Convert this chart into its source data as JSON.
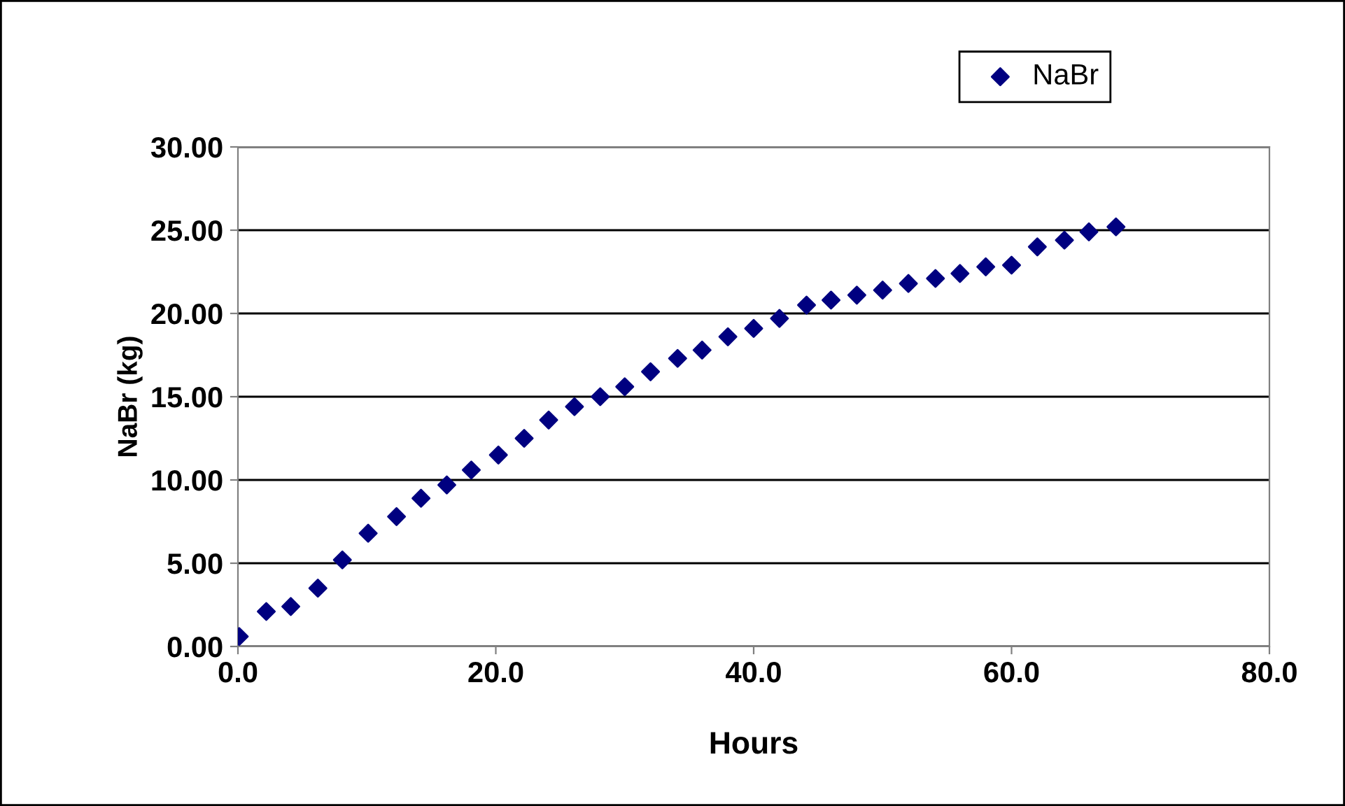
{
  "chart_data": {
    "type": "scatter",
    "xlabel": "Hours",
    "ylabel": "NaBr (kg)",
    "x": [
      0.1,
      2.2,
      4.1,
      6.2,
      8.1,
      10.1,
      12.3,
      14.2,
      16.2,
      18.1,
      20.2,
      22.2,
      24.1,
      26.1,
      28.1,
      30.0,
      32.0,
      34.1,
      36.0,
      38.0,
      40.0,
      42.0,
      44.1,
      46.0,
      48.0,
      50.0,
      52.0,
      54.1,
      56.0,
      58.0,
      60.0,
      62.0,
      64.1,
      66.0,
      68.1
    ],
    "series": [
      {
        "name": "NaBr",
        "color": "#000080",
        "values": [
          0.6,
          2.1,
          2.4,
          3.5,
          5.2,
          6.8,
          7.8,
          8.9,
          9.7,
          10.6,
          11.5,
          12.5,
          13.6,
          14.4,
          15.0,
          15.6,
          16.5,
          17.3,
          17.8,
          18.6,
          19.1,
          19.7,
          20.5,
          20.8,
          21.1,
          21.4,
          21.8,
          22.1,
          22.4,
          22.8,
          22.9,
          24.0,
          24.4,
          24.9,
          25.2
        ]
      }
    ],
    "xlim": [
      0,
      80
    ],
    "xticks": [
      {
        "value": 0,
        "label": "0.0"
      },
      {
        "value": 20,
        "label": "20.0"
      },
      {
        "value": 40,
        "label": "40.0"
      },
      {
        "value": 60,
        "label": "60.0"
      },
      {
        "value": 80,
        "label": "80.0"
      }
    ],
    "ylim": [
      0,
      30
    ],
    "yticks": [
      {
        "value": 0,
        "label": "0.00"
      },
      {
        "value": 5,
        "label": "5.00"
      },
      {
        "value": 10,
        "label": "10.00"
      },
      {
        "value": 15,
        "label": "15.00"
      },
      {
        "value": 20,
        "label": "20.00"
      },
      {
        "value": 25,
        "label": "25.00"
      },
      {
        "value": 30,
        "label": "30.00"
      }
    ],
    "grid": "y",
    "legend": "top right",
    "marker": "diamond"
  }
}
